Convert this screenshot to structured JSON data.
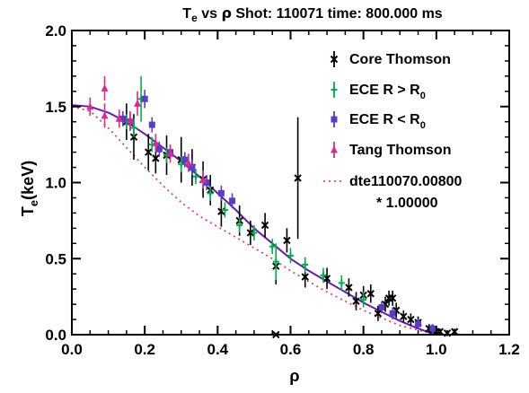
{
  "chart_data": {
    "type": "scatter",
    "title_parts": {
      "t": "T",
      "t_sub": "e",
      "vs": " vs ",
      "rho": "ρ",
      "rest": " Shot:  110071  time: 800.000 ms"
    },
    "xlabel": "ρ",
    "ylabel_parts": {
      "t": "T",
      "t_sub": "e",
      "unit": "(keV)"
    },
    "xlim": [
      0.0,
      1.2
    ],
    "ylim": [
      0.0,
      2.0
    ],
    "xticks": [
      "0.0",
      "0.2",
      "0.4",
      "0.6",
      "0.8",
      "1.0",
      "1.2"
    ],
    "yticks": [
      "0.0",
      "0.5",
      "1.0",
      "1.5",
      "2.0"
    ],
    "legend_position": "top-right",
    "grid": false,
    "legend": {
      "core": "Core Thomson",
      "ece_out_a": "ECE  R > R",
      "ece_out_sub": "0",
      "ece_in_a": "ECE  R < R",
      "ece_in_sub": "0",
      "tang": "Tang Thomson",
      "ref_line1": "dte110070.00800",
      "ref_line2": "* 1.00000"
    },
    "colors": {
      "core": "#000000",
      "ece_out": "#00b050",
      "ece_in": "#5a3cc8",
      "tang": "#d62c8c",
      "fit": "#6a1ba8",
      "ref": "#e0407a"
    },
    "series": [
      {
        "name": "Core Thomson",
        "marker": "x",
        "points": [
          [
            0.15,
            1.4,
            0.12
          ],
          [
            0.17,
            1.3,
            0.15
          ],
          [
            0.21,
            1.2,
            0.12
          ],
          [
            0.23,
            1.16,
            0.1
          ],
          [
            0.26,
            1.18,
            0.13
          ],
          [
            0.3,
            1.15,
            0.15
          ],
          [
            0.33,
            1.1,
            0.12
          ],
          [
            0.36,
            1.02,
            0.12
          ],
          [
            0.38,
            0.95,
            0.1
          ],
          [
            0.41,
            0.81,
            0.1
          ],
          [
            0.46,
            0.75,
            0.1
          ],
          [
            0.49,
            0.67,
            0.08
          ],
          [
            0.53,
            0.72,
            0.08
          ],
          [
            0.56,
            0.45,
            0.12
          ],
          [
            0.59,
            0.62,
            0.08
          ],
          [
            0.62,
            1.03,
            0.4
          ],
          [
            0.64,
            0.38,
            0.07
          ],
          [
            0.7,
            0.37,
            0.07
          ],
          [
            0.76,
            0.31,
            0.06
          ],
          [
            0.78,
            0.22,
            0.06
          ],
          [
            0.8,
            0.26,
            0.06
          ],
          [
            0.82,
            0.27,
            0.06
          ],
          [
            0.84,
            0.14,
            0.05
          ],
          [
            0.86,
            0.2,
            0.05
          ],
          [
            0.87,
            0.24,
            0.05
          ],
          [
            0.88,
            0.24,
            0.05
          ],
          [
            0.89,
            0.16,
            0.05
          ],
          [
            0.91,
            0.12,
            0.04
          ],
          [
            0.93,
            0.1,
            0.04
          ],
          [
            0.95,
            0.08,
            0.04
          ],
          [
            0.98,
            0.04,
            0.03
          ],
          [
            0.99,
            0.03,
            0.02
          ],
          [
            1.0,
            0.02,
            0.02
          ],
          [
            1.01,
            0.02,
            0.02
          ],
          [
            1.03,
            0.01,
            0.02
          ],
          [
            1.05,
            0.02,
            0.02
          ],
          [
            0.56,
            0.0,
            0.0
          ]
        ]
      },
      {
        "name": "ECE  R > R0",
        "marker": "plus",
        "points": [
          [
            0.15,
            1.4,
            0.05
          ],
          [
            0.17,
            1.36,
            0.06
          ],
          [
            0.19,
            1.55,
            0.15
          ],
          [
            0.22,
            1.25,
            0.05
          ],
          [
            0.26,
            1.18,
            0.05
          ],
          [
            0.3,
            1.12,
            0.05
          ],
          [
            0.34,
            1.04,
            0.05
          ],
          [
            0.38,
            0.93,
            0.05
          ],
          [
            0.42,
            0.82,
            0.05
          ],
          [
            0.46,
            0.72,
            0.05
          ],
          [
            0.5,
            0.67,
            0.05
          ],
          [
            0.55,
            0.58,
            0.05
          ],
          [
            0.56,
            0.48,
            0.12
          ],
          [
            0.6,
            0.52,
            0.05
          ],
          [
            0.64,
            0.46,
            0.05
          ],
          [
            0.69,
            0.39,
            0.05
          ],
          [
            0.74,
            0.34,
            0.05
          ],
          [
            0.8,
            0.23,
            0.05
          ]
        ]
      },
      {
        "name": "ECE  R < R0",
        "marker": "square",
        "points": [
          [
            0.14,
            1.42,
            0.05
          ],
          [
            0.16,
            1.4,
            0.06
          ],
          [
            0.2,
            1.55,
            0.06
          ],
          [
            0.22,
            1.38,
            0.05
          ],
          [
            0.24,
            1.22,
            0.05
          ],
          [
            0.27,
            1.2,
            0.05
          ],
          [
            0.31,
            1.15,
            0.05
          ],
          [
            0.33,
            1.1,
            0.05
          ],
          [
            0.37,
            1.0,
            0.05
          ],
          [
            0.41,
            0.93,
            0.05
          ],
          [
            0.44,
            0.88,
            0.05
          ],
          [
            0.85,
            0.18,
            0.04
          ],
          [
            0.88,
            0.14,
            0.04
          ],
          [
            0.95,
            0.07,
            0.03
          ],
          [
            0.99,
            0.04,
            0.03
          ]
        ]
      },
      {
        "name": "Tang Thomson",
        "marker": "triangle",
        "points": [
          [
            0.05,
            1.5,
            0.06
          ],
          [
            0.09,
            1.62,
            0.08
          ],
          [
            0.09,
            1.44,
            0.08
          ],
          [
            0.13,
            1.42,
            0.06
          ],
          [
            0.16,
            1.41,
            0.06
          ],
          [
            0.18,
            1.52,
            0.08
          ],
          [
            0.23,
            1.26,
            0.06
          ],
          [
            0.27,
            1.19,
            0.06
          ],
          [
            0.32,
            1.13,
            0.06
          ],
          [
            0.36,
            1.02,
            0.06
          ]
        ]
      }
    ],
    "fit": {
      "x": [
        0.0,
        0.05,
        0.1,
        0.15,
        0.2,
        0.25,
        0.3,
        0.35,
        0.4,
        0.45,
        0.5,
        0.55,
        0.6,
        0.65,
        0.7,
        0.75,
        0.8,
        0.85,
        0.9,
        0.95,
        1.0
      ],
      "y": [
        1.51,
        1.5,
        1.46,
        1.4,
        1.32,
        1.23,
        1.14,
        1.04,
        0.93,
        0.82,
        0.7,
        0.6,
        0.5,
        0.42,
        0.35,
        0.28,
        0.21,
        0.15,
        0.09,
        0.04,
        0.0
      ]
    },
    "reference": {
      "x": [
        0.0,
        0.05,
        0.1,
        0.15,
        0.2,
        0.25,
        0.3,
        0.35,
        0.4,
        0.45,
        0.5,
        0.55,
        0.6,
        0.65,
        0.7,
        0.75,
        0.8,
        0.85,
        0.9,
        0.95,
        1.0
      ],
      "y": [
        1.5,
        1.47,
        1.36,
        1.23,
        1.1,
        0.98,
        0.87,
        0.78,
        0.71,
        0.64,
        0.57,
        0.5,
        0.42,
        0.35,
        0.28,
        0.22,
        0.16,
        0.11,
        0.06,
        0.03,
        0.0
      ]
    }
  }
}
